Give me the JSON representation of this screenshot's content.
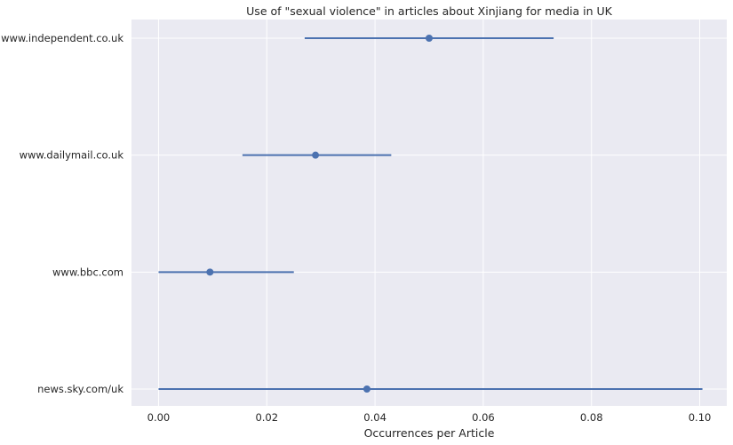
{
  "chart_data": {
    "type": "scatter",
    "style": "point-with-error-bars",
    "title": "Use of \"sexual violence\" in articles about Xinjiang for media in UK",
    "xlabel": "Occurrences per Article",
    "ylabel": "",
    "categories": [
      "www.independent.co.uk",
      "www.dailymail.co.uk",
      "www.bbc.com",
      "news.sky.com/uk"
    ],
    "values": [
      0.05,
      0.029,
      0.0095,
      0.0385
    ],
    "ci_low": [
      0.027,
      0.0155,
      0.0,
      0.0
    ],
    "ci_high": [
      0.073,
      0.043,
      0.025,
      0.1005
    ],
    "xlim": [
      -0.005,
      0.105
    ],
    "xticks": [
      0.0,
      0.02,
      0.04,
      0.06,
      0.08,
      0.1
    ],
    "xtick_labels": [
      "0.00",
      "0.02",
      "0.04",
      "0.06",
      "0.08",
      "0.10"
    ],
    "grid": true,
    "colors": {
      "background": "#eaeaf2",
      "grid": "#ffffff",
      "series": "#4c72b0"
    }
  }
}
